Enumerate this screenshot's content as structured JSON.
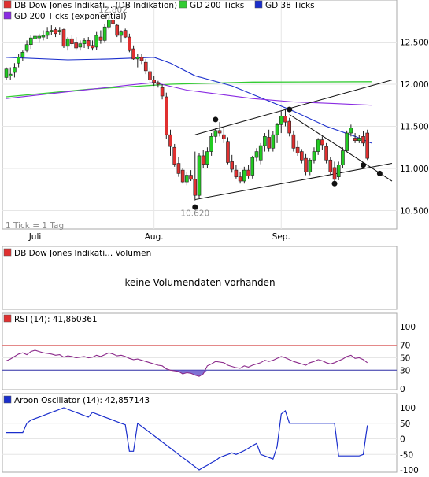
{
  "chart_data": [
    {
      "type": "candlestick",
      "legend": [
        {
          "label": "DB Dow Jones Indikati... (DB Indikation)",
          "color": "#e03030"
        },
        {
          "label": "GD 200 Ticks",
          "color": "#33cc33"
        },
        {
          "label": "GD 38 Ticks",
          "color": "#1a2ecc"
        },
        {
          "label": "GD 200 Ticks (exponential)",
          "color": "#8a2be2"
        }
      ],
      "ylim": [
        10280,
        13000
      ],
      "y_ticks": [
        "12.500",
        "12.000",
        "11.500",
        "11.000",
        "10.500"
      ],
      "x_ticks": [
        {
          "label": "Juli",
          "i": 7
        },
        {
          "label": "Aug.",
          "i": 36
        },
        {
          "label": "Sep.",
          "i": 67
        }
      ],
      "annotations": {
        "high_label": "12.802",
        "high_value": 12802,
        "high_i": 26,
        "low_label": "10.620",
        "low_value": 10620,
        "low_i": 46
      },
      "note": "1 Tick = 1 Tag",
      "candles": [
        {
          "o": 12080,
          "h": 12200,
          "l": 12050,
          "c": 12180
        },
        {
          "o": 12100,
          "h": 12200,
          "l": 12050,
          "c": 12120
        },
        {
          "o": 12140,
          "h": 12250,
          "l": 12080,
          "c": 12200
        },
        {
          "o": 12250,
          "h": 12360,
          "l": 12200,
          "c": 12320
        },
        {
          "o": 12320,
          "h": 12400,
          "l": 12280,
          "c": 12380
        },
        {
          "o": 12400,
          "h": 12520,
          "l": 12380,
          "c": 12470
        },
        {
          "o": 12470,
          "h": 12580,
          "l": 12420,
          "c": 12550
        },
        {
          "o": 12540,
          "h": 12600,
          "l": 12460,
          "c": 12570
        },
        {
          "o": 12550,
          "h": 12600,
          "l": 12500,
          "c": 12570
        },
        {
          "o": 12560,
          "h": 12640,
          "l": 12520,
          "c": 12580
        },
        {
          "o": 12580,
          "h": 12680,
          "l": 12540,
          "c": 12620
        },
        {
          "o": 12620,
          "h": 12700,
          "l": 12580,
          "c": 12640
        },
        {
          "o": 12650,
          "h": 12680,
          "l": 12560,
          "c": 12600
        },
        {
          "o": 12620,
          "h": 12680,
          "l": 12580,
          "c": 12640
        },
        {
          "o": 12650,
          "h": 12660,
          "l": 12430,
          "c": 12450
        },
        {
          "o": 12450,
          "h": 12560,
          "l": 12400,
          "c": 12540
        },
        {
          "o": 12540,
          "h": 12580,
          "l": 12450,
          "c": 12480
        },
        {
          "o": 12500,
          "h": 12560,
          "l": 12400,
          "c": 12430
        },
        {
          "o": 12440,
          "h": 12520,
          "l": 12400,
          "c": 12480
        },
        {
          "o": 12480,
          "h": 12550,
          "l": 12430,
          "c": 12520
        },
        {
          "o": 12520,
          "h": 12560,
          "l": 12420,
          "c": 12450
        },
        {
          "o": 12460,
          "h": 12520,
          "l": 12400,
          "c": 12430
        },
        {
          "o": 12440,
          "h": 12620,
          "l": 12410,
          "c": 12580
        },
        {
          "o": 12560,
          "h": 12640,
          "l": 12480,
          "c": 12520
        },
        {
          "o": 12520,
          "h": 12720,
          "l": 12500,
          "c": 12680
        },
        {
          "o": 12680,
          "h": 12790,
          "l": 12650,
          "c": 12760
        },
        {
          "o": 12760,
          "h": 12802,
          "l": 12680,
          "c": 12720
        },
        {
          "o": 12700,
          "h": 12720,
          "l": 12560,
          "c": 12580
        },
        {
          "o": 12580,
          "h": 12640,
          "l": 12500,
          "c": 12620
        },
        {
          "o": 12640,
          "h": 12660,
          "l": 12550,
          "c": 12560
        },
        {
          "o": 12560,
          "h": 12600,
          "l": 12380,
          "c": 12400
        },
        {
          "o": 12420,
          "h": 12460,
          "l": 12290,
          "c": 12300
        },
        {
          "o": 12300,
          "h": 12360,
          "l": 12200,
          "c": 12320
        },
        {
          "o": 12320,
          "h": 12360,
          "l": 12240,
          "c": 12280
        },
        {
          "o": 12260,
          "h": 12300,
          "l": 12120,
          "c": 12160
        },
        {
          "o": 12150,
          "h": 12200,
          "l": 12020,
          "c": 12050
        },
        {
          "o": 12050,
          "h": 12100,
          "l": 11980,
          "c": 12020
        },
        {
          "o": 12020,
          "h": 12040,
          "l": 11960,
          "c": 12000
        },
        {
          "o": 11960,
          "h": 12000,
          "l": 11820,
          "c": 11860
        },
        {
          "o": 11850,
          "h": 11900,
          "l": 11350,
          "c": 11400
        },
        {
          "o": 11400,
          "h": 11460,
          "l": 11150,
          "c": 11260
        },
        {
          "o": 11250,
          "h": 11290,
          "l": 11020,
          "c": 11050
        },
        {
          "o": 11060,
          "h": 11140,
          "l": 10900,
          "c": 10940
        },
        {
          "o": 10980,
          "h": 11000,
          "l": 10820,
          "c": 10840
        },
        {
          "o": 10840,
          "h": 10960,
          "l": 10800,
          "c": 10920
        },
        {
          "o": 10920,
          "h": 10980,
          "l": 10850,
          "c": 10870
        },
        {
          "o": 10870,
          "h": 11200,
          "l": 10620,
          "c": 10680
        },
        {
          "o": 10680,
          "h": 11180,
          "l": 10650,
          "c": 11150
        },
        {
          "o": 11150,
          "h": 11220,
          "l": 11000,
          "c": 11050
        },
        {
          "o": 11050,
          "h": 11250,
          "l": 11000,
          "c": 11200
        },
        {
          "o": 11200,
          "h": 11420,
          "l": 11150,
          "c": 11380
        },
        {
          "o": 11380,
          "h": 11480,
          "l": 11300,
          "c": 11450
        },
        {
          "o": 11450,
          "h": 11550,
          "l": 11380,
          "c": 11420
        },
        {
          "o": 11400,
          "h": 11480,
          "l": 11300,
          "c": 11350
        },
        {
          "o": 11320,
          "h": 11370,
          "l": 11050,
          "c": 11070
        },
        {
          "o": 11080,
          "h": 11160,
          "l": 10950,
          "c": 10990
        },
        {
          "o": 10980,
          "h": 11040,
          "l": 10880,
          "c": 10900
        },
        {
          "o": 10900,
          "h": 10960,
          "l": 10820,
          "c": 10850
        },
        {
          "o": 10850,
          "h": 11020,
          "l": 10820,
          "c": 10980
        },
        {
          "o": 10980,
          "h": 11040,
          "l": 10880,
          "c": 10910
        },
        {
          "o": 10920,
          "h": 11150,
          "l": 10880,
          "c": 11130
        },
        {
          "o": 11130,
          "h": 11240,
          "l": 11080,
          "c": 11200
        },
        {
          "o": 11100,
          "h": 11300,
          "l": 11050,
          "c": 11270
        },
        {
          "o": 11270,
          "h": 11420,
          "l": 11200,
          "c": 11380
        },
        {
          "o": 11370,
          "h": 11460,
          "l": 11200,
          "c": 11240
        },
        {
          "o": 11240,
          "h": 11440,
          "l": 11200,
          "c": 11400
        },
        {
          "o": 11400,
          "h": 11540,
          "l": 11300,
          "c": 11520
        },
        {
          "o": 11520,
          "h": 11680,
          "l": 11420,
          "c": 11620
        },
        {
          "o": 11620,
          "h": 11700,
          "l": 11500,
          "c": 11550
        },
        {
          "o": 11560,
          "h": 11600,
          "l": 11380,
          "c": 11420
        },
        {
          "o": 11400,
          "h": 11450,
          "l": 11200,
          "c": 11240
        },
        {
          "o": 11250,
          "h": 11330,
          "l": 11150,
          "c": 11180
        },
        {
          "o": 11200,
          "h": 11230,
          "l": 11060,
          "c": 11100
        },
        {
          "o": 11120,
          "h": 11170,
          "l": 10920,
          "c": 10960
        },
        {
          "o": 10960,
          "h": 11120,
          "l": 10920,
          "c": 11100
        },
        {
          "o": 11100,
          "h": 11250,
          "l": 11060,
          "c": 11200
        },
        {
          "o": 11200,
          "h": 11360,
          "l": 11160,
          "c": 11340
        },
        {
          "o": 11340,
          "h": 11380,
          "l": 11220,
          "c": 11280
        },
        {
          "o": 11260,
          "h": 11300,
          "l": 11060,
          "c": 11100
        },
        {
          "o": 11100,
          "h": 11140,
          "l": 10920,
          "c": 10960
        },
        {
          "o": 11010,
          "h": 11080,
          "l": 10820,
          "c": 10870
        },
        {
          "o": 10900,
          "h": 11080,
          "l": 10860,
          "c": 11040
        },
        {
          "o": 11040,
          "h": 11250,
          "l": 11000,
          "c": 11210
        },
        {
          "o": 11210,
          "h": 11450,
          "l": 11200,
          "c": 11420
        },
        {
          "o": 11420,
          "h": 11520,
          "l": 11380,
          "c": 11480
        },
        {
          "o": 11360,
          "h": 11420,
          "l": 11300,
          "c": 11330
        },
        {
          "o": 11330,
          "h": 11400,
          "l": 11300,
          "c": 11360
        },
        {
          "o": 11380,
          "h": 11440,
          "l": 11260,
          "c": 11300
        },
        {
          "o": 11420,
          "h": 11460,
          "l": 11100,
          "c": 11120
        }
      ],
      "gd200": [
        [
          0,
          11850
        ],
        [
          20,
          11940
        ],
        [
          40,
          12000
        ],
        [
          60,
          12025
        ],
        [
          89,
          12030
        ]
      ],
      "gd38": [
        [
          0,
          12320
        ],
        [
          15,
          12290
        ],
        [
          25,
          12300
        ],
        [
          36,
          12320
        ],
        [
          40,
          12250
        ],
        [
          46,
          12100
        ],
        [
          55,
          11980
        ],
        [
          62,
          11840
        ],
        [
          70,
          11680
        ],
        [
          78,
          11500
        ],
        [
          85,
          11380
        ],
        [
          89,
          11300
        ]
      ],
      "gd200exp": [
        [
          0,
          11830
        ],
        [
          15,
          11910
        ],
        [
          30,
          11990
        ],
        [
          36,
          12020
        ],
        [
          44,
          11930
        ],
        [
          52,
          11880
        ],
        [
          60,
          11830
        ],
        [
          70,
          11790
        ],
        [
          80,
          11770
        ],
        [
          89,
          11750
        ]
      ],
      "trend_lines": [
        [
          [
            46,
            11400
          ],
          [
            94,
            12050
          ]
        ],
        [
          [
            46,
            10630
          ],
          [
            94,
            11060
          ]
        ],
        [
          [
            69,
            11640
          ],
          [
            94,
            10850
          ]
        ]
      ],
      "markers": [
        [
          51,
          11580
        ],
        [
          69,
          11700
        ],
        [
          46,
          10540
        ],
        [
          80,
          10820
        ],
        [
          91,
          10940
        ],
        [
          87,
          11040
        ]
      ]
    },
    {
      "type": "bar",
      "legend": [
        {
          "label": "DB Dow Jones Indikati... Volumen",
          "color": "#e03030"
        }
      ],
      "message": "keine Volumendaten vorhanden"
    },
    {
      "type": "line",
      "legend": [
        {
          "label": "RSI (14): 41,860361",
          "color": "#e03030"
        }
      ],
      "ylim": [
        0,
        100
      ],
      "y_ticks": [
        "100",
        "70",
        "50",
        "30",
        "0"
      ],
      "reference_lines": [
        {
          "value": 70,
          "color": "#e06666"
        },
        {
          "value": 30,
          "color": "#3333aa"
        }
      ],
      "values": [
        45,
        48,
        52,
        56,
        58,
        55,
        60,
        62,
        60,
        58,
        57,
        56,
        54,
        55,
        51,
        53,
        52,
        50,
        51,
        52,
        50,
        51,
        54,
        52,
        55,
        58,
        56,
        53,
        54,
        52,
        49,
        47,
        48,
        46,
        44,
        42,
        40,
        38,
        37,
        32,
        30,
        29,
        28,
        24,
        26,
        25,
        22,
        20,
        24,
        37,
        40,
        44,
        43,
        42,
        38,
        36,
        34,
        33,
        37,
        35,
        38,
        40,
        42,
        46,
        44,
        46,
        49,
        52,
        50,
        47,
        44,
        42,
        40,
        38,
        42,
        44,
        47,
        45,
        42,
        40,
        42,
        45,
        48,
        52,
        54,
        49,
        50,
        47,
        42
      ]
    },
    {
      "type": "line",
      "legend": [
        {
          "label": "Aroon Oscillator (14): 42,857143",
          "color": "#1a2ecc"
        }
      ],
      "ylim": [
        -100,
        100
      ],
      "y_ticks": [
        "100",
        "50",
        "0",
        "-50",
        "-100"
      ],
      "values": [
        20,
        20,
        20,
        20,
        20,
        50,
        60,
        65,
        70,
        75,
        80,
        85,
        90,
        95,
        100,
        95,
        90,
        85,
        80,
        75,
        70,
        85,
        80,
        75,
        70,
        65,
        60,
        55,
        50,
        45,
        -40,
        -40,
        50,
        40,
        30,
        20,
        10,
        0,
        -10,
        -20,
        -30,
        -40,
        -50,
        -60,
        -70,
        -80,
        -90,
        -100,
        -92,
        -85,
        -77,
        -70,
        -60,
        -55,
        -50,
        -45,
        -50,
        -44,
        -38,
        -30,
        -22,
        -15,
        -50,
        -55,
        -60,
        -65,
        -25,
        80,
        90,
        50,
        50,
        50,
        50,
        50,
        50,
        50,
        50,
        50,
        50,
        50,
        50,
        -55,
        -55,
        -55,
        -55,
        -55,
        -55,
        -50,
        43
      ]
    }
  ]
}
